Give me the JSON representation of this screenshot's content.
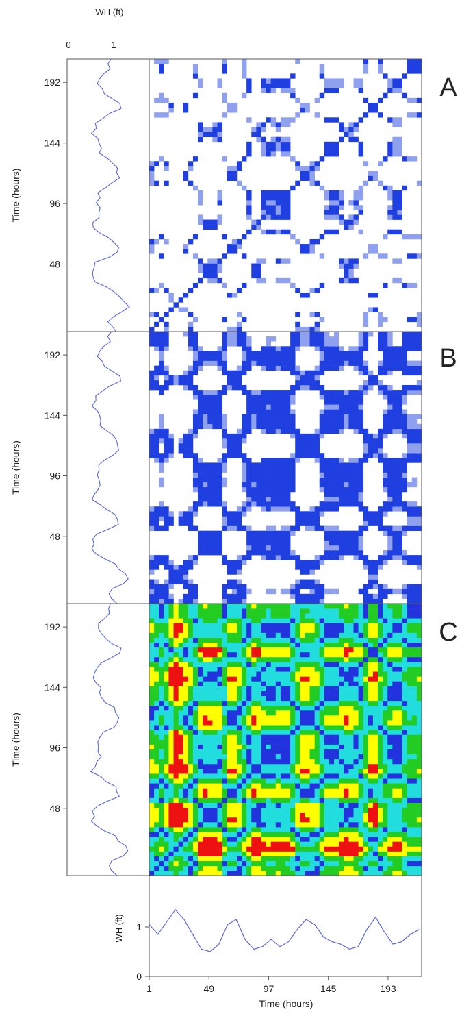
{
  "chart_data": [
    {
      "type": "line",
      "panel": "WH strip (rotated, top)",
      "top_axis_label": "WH (ft)",
      "top_ticks": [
        "0",
        "1"
      ],
      "y_axis_label": "Time (hours)",
      "y_ticks": [
        48,
        96,
        144,
        192
      ]
    },
    {
      "type": "heatmap",
      "panel_label": "A",
      "ylabel": "Time (hours)",
      "y_ticks": [
        48,
        96,
        144,
        192
      ],
      "colors": [
        "#1f3fe0",
        "#8fa0ee"
      ],
      "description_values": "thresholded recurrence plot, sparse blue points"
    },
    {
      "type": "heatmap",
      "panel_label": "B",
      "ylabel": "Time (hours)",
      "y_ticks": [
        48,
        96,
        144,
        192
      ],
      "colors": [
        "#1f3fe0",
        "#8fa0ee"
      ]
    },
    {
      "type": "heatmap",
      "panel_label": "C",
      "ylabel": "Time (hours)",
      "y_ticks": [
        48,
        96,
        144,
        192
      ],
      "colors": [
        "#2233dd",
        "#22dddd",
        "#22cc22",
        "#ffff00",
        "#ee1111"
      ]
    },
    {
      "type": "line",
      "panel": "WH bottom strip",
      "ylabel": "WH (ft)",
      "y_ticks": [
        "0",
        "1"
      ],
      "xlabel": "Time (hours)",
      "x_ticks": [
        "1",
        "49",
        "97",
        "145",
        "193"
      ],
      "xlim": [
        1,
        220
      ],
      "ylim": [
        0,
        1.6
      ],
      "series": [
        {
          "x": [
            1,
            8,
            15,
            22,
            29,
            36,
            43,
            50,
            57,
            64,
            71,
            78,
            85,
            92,
            99,
            106,
            113,
            120,
            127,
            134,
            141,
            148,
            155,
            162,
            169,
            176,
            183,
            190,
            197,
            204,
            211,
            218
          ],
          "y": [
            1.05,
            0.85,
            1.1,
            1.35,
            1.15,
            0.85,
            0.55,
            0.5,
            0.65,
            1.05,
            1.15,
            0.75,
            0.55,
            0.6,
            0.75,
            0.6,
            0.7,
            0.95,
            1.15,
            1.05,
            0.8,
            0.7,
            0.65,
            0.55,
            0.6,
            0.95,
            1.2,
            0.9,
            0.65,
            0.7,
            0.85,
            0.95
          ]
        }
      ]
    }
  ],
  "panel_labels": [
    "A",
    "B",
    "C"
  ],
  "colors": {
    "line": "#5566dd",
    "axis": "#555555"
  }
}
